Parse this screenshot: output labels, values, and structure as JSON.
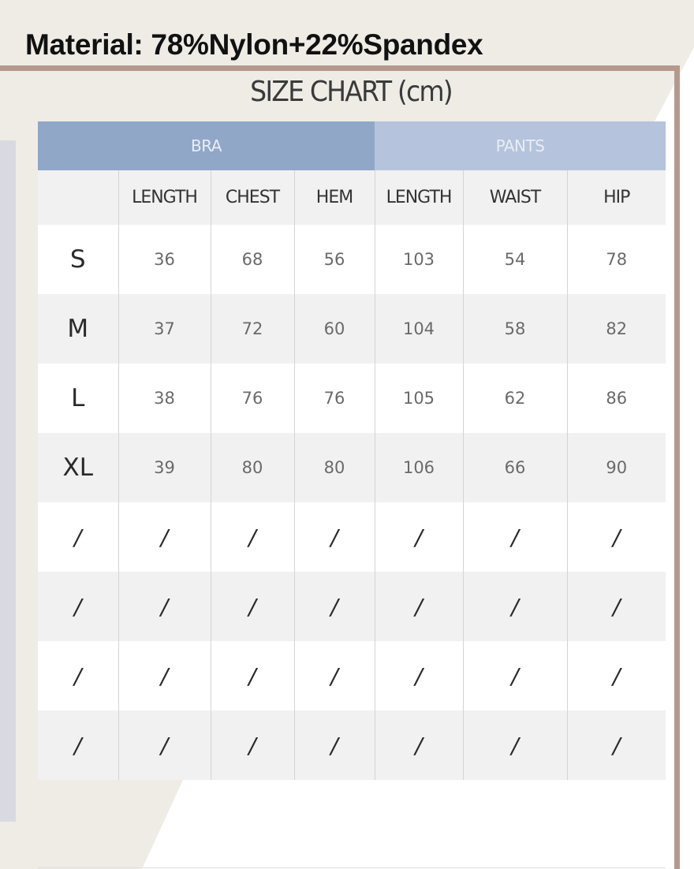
{
  "material": "Material: 78%Nylon+22%Spandex",
  "title": "SIZE CHART (cm)",
  "colors": {
    "bra_header": "#91a7c8",
    "pants_header": "#b5c3dc",
    "frame": "#b49a8c",
    "row_alt": "#f1f1f1"
  },
  "groups": {
    "bra": "BRA",
    "pants": "PANTS"
  },
  "columns": [
    "",
    "LENGTH",
    "CHEST",
    "HEM",
    "LENGTH",
    "WAIST",
    "HIP"
  ],
  "rows": [
    [
      "S",
      "36",
      "68",
      "56",
      "103",
      "54",
      "78"
    ],
    [
      "M",
      "37",
      "72",
      "60",
      "104",
      "58",
      "82"
    ],
    [
      "L",
      "38",
      "76",
      "76",
      "105",
      "62",
      "86"
    ],
    [
      "XL",
      "39",
      "80",
      "80",
      "106",
      "66",
      "90"
    ],
    [
      "/",
      "/",
      "/",
      "/",
      "/",
      "/",
      "/"
    ],
    [
      "/",
      "/",
      "/",
      "/",
      "/",
      "/",
      "/"
    ],
    [
      "/",
      "/",
      "/",
      "/",
      "/",
      "/",
      "/"
    ],
    [
      "/",
      "/",
      "/",
      "/",
      "/",
      "/",
      "/"
    ]
  ]
}
